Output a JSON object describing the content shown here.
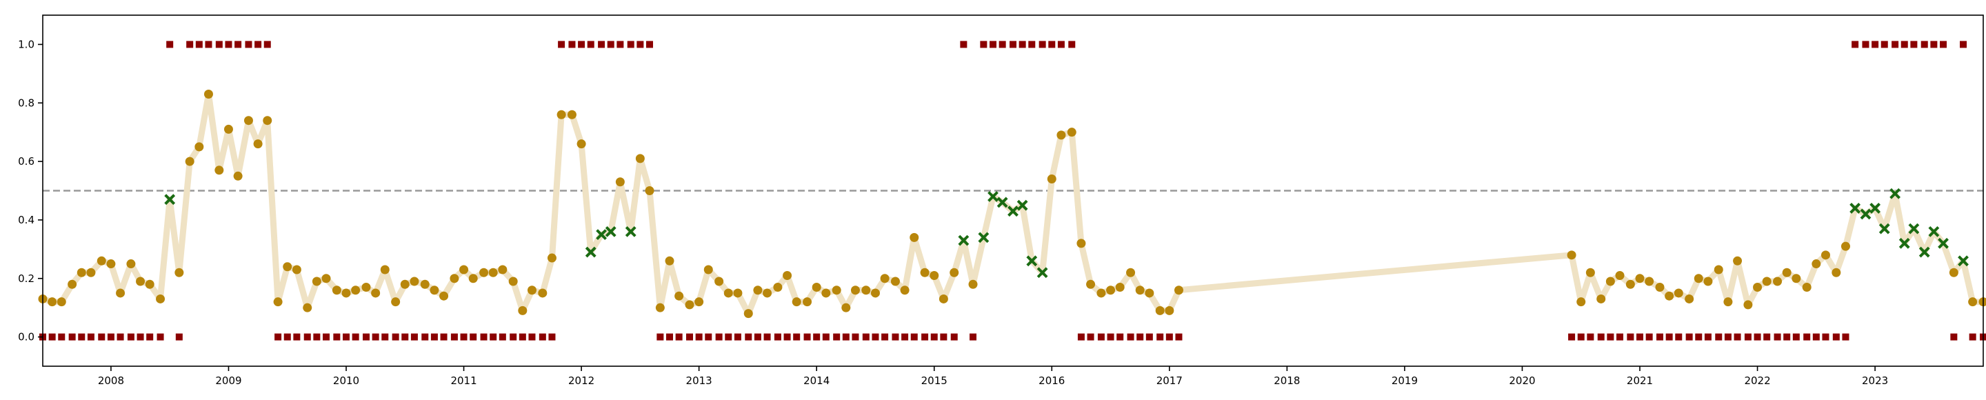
{
  "chart_data": {
    "type": "scatter",
    "title": "",
    "xlabel": "",
    "ylabel": "",
    "xlim": [
      2007.42,
      2023.92
    ],
    "ylim": [
      -0.1,
      1.1
    ],
    "x_ticks": [
      2008,
      2009,
      2010,
      2011,
      2012,
      2013,
      2014,
      2015,
      2016,
      2017,
      2018,
      2019,
      2020,
      2021,
      2022,
      2023
    ],
    "x_tick_labels": [
      "2008",
      "2009",
      "2010",
      "2011",
      "2012",
      "2013",
      "2014",
      "2015",
      "2016",
      "2017",
      "2018",
      "2019",
      "2020",
      "2021",
      "2022",
      "2023"
    ],
    "y_ticks": [
      0.0,
      0.2,
      0.4,
      0.6,
      0.8,
      1.0
    ],
    "y_tick_labels": [
      "0.0",
      "0.2",
      "0.4",
      "0.6",
      "0.8",
      "1.0"
    ],
    "grid": false,
    "reference_line": {
      "y": 0.5,
      "style": "dashed",
      "color": "#999999"
    },
    "colors": {
      "line": "#efe2c4",
      "normal_point": "#b8860b",
      "flagged_point": "#1a6b12",
      "indicator": "#8b0000",
      "axes": "#000000"
    },
    "series": [
      {
        "kind": "score-line",
        "x": [
          2007.42,
          2007.5,
          2007.58,
          2007.67,
          2007.75,
          2007.83,
          2007.92,
          2008.0,
          2008.08,
          2008.17,
          2008.25,
          2008.33,
          2008.42,
          2008.5,
          2008.58,
          2008.67,
          2008.75,
          2008.83,
          2008.92,
          2009.0,
          2009.08,
          2009.17,
          2009.25,
          2009.33,
          2009.42,
          2009.5,
          2009.58,
          2009.67,
          2009.75,
          2009.83,
          2009.92,
          2010.0,
          2010.08,
          2010.17,
          2010.25,
          2010.33,
          2010.42,
          2010.5,
          2010.58,
          2010.67,
          2010.75,
          2010.83,
          2010.92,
          2011.0,
          2011.08,
          2011.17,
          2011.25,
          2011.33,
          2011.42,
          2011.5,
          2011.58,
          2011.67,
          2011.75,
          2011.83,
          2011.92,
          2012.0,
          2012.08,
          2012.17,
          2012.25,
          2012.33,
          2012.42,
          2012.5,
          2012.58,
          2012.67,
          2012.75,
          2012.83,
          2012.92,
          2013.0,
          2013.08,
          2013.17,
          2013.25,
          2013.33,
          2013.42,
          2013.5,
          2013.58,
          2013.67,
          2013.75,
          2013.83,
          2013.92,
          2014.0,
          2014.08,
          2014.17,
          2014.25,
          2014.33,
          2014.42,
          2014.5,
          2014.58,
          2014.67,
          2014.75,
          2014.83,
          2014.92,
          2015.0,
          2015.08,
          2015.17,
          2015.25,
          2015.33,
          2015.42,
          2015.5,
          2015.58,
          2015.67,
          2015.75,
          2015.83,
          2015.92,
          2016.0,
          2016.08,
          2016.17,
          2016.25,
          2016.33,
          2016.42,
          2016.5,
          2016.58,
          2016.67,
          2016.75,
          2016.83,
          2016.92,
          2017.0,
          2017.08,
          2020.42,
          2020.5,
          2020.58,
          2020.67,
          2020.75,
          2020.83,
          2020.92,
          2021.0,
          2021.08,
          2021.17,
          2021.25,
          2021.33,
          2021.42,
          2021.5,
          2021.58,
          2021.67,
          2021.75,
          2021.83,
          2021.92,
          2022.0,
          2022.08,
          2022.17,
          2022.25,
          2022.33,
          2022.42,
          2022.5,
          2022.58,
          2022.67,
          2022.75,
          2022.83,
          2022.92,
          2023.0,
          2023.08,
          2023.17,
          2023.25,
          2023.33,
          2023.42,
          2023.5,
          2023.58,
          2023.67,
          2023.75,
          2023.83,
          2023.92
        ],
        "y": [
          0.13,
          0.12,
          0.12,
          0.18,
          0.22,
          0.22,
          0.26,
          0.25,
          0.15,
          0.25,
          0.19,
          0.18,
          0.13,
          0.47,
          0.22,
          0.6,
          0.65,
          0.83,
          0.57,
          0.71,
          0.55,
          0.74,
          0.66,
          0.74,
          0.12,
          0.24,
          0.23,
          0.1,
          0.19,
          0.2,
          0.16,
          0.15,
          0.16,
          0.17,
          0.15,
          0.23,
          0.12,
          0.18,
          0.19,
          0.18,
          0.16,
          0.14,
          0.2,
          0.23,
          0.2,
          0.22,
          0.22,
          0.23,
          0.19,
          0.09,
          0.16,
          0.15,
          0.27,
          0.76,
          0.76,
          0.66,
          0.29,
          0.35,
          0.36,
          0.53,
          0.36,
          0.61,
          0.5,
          0.1,
          0.26,
          0.14,
          0.11,
          0.12,
          0.23,
          0.19,
          0.15,
          0.15,
          0.08,
          0.16,
          0.15,
          0.17,
          0.21,
          0.12,
          0.12,
          0.17,
          0.15,
          0.16,
          0.1,
          0.16,
          0.16,
          0.15,
          0.2,
          0.19,
          0.16,
          0.34,
          0.22,
          0.21,
          0.13,
          0.22,
          0.33,
          0.18,
          0.34,
          0.48,
          0.46,
          0.43,
          0.45,
          0.26,
          0.22,
          0.54,
          0.69,
          0.7,
          0.32,
          0.18,
          0.15,
          0.16,
          0.17,
          0.22,
          0.16,
          0.15,
          0.09,
          0.09,
          0.16,
          0.28,
          0.12,
          0.22,
          0.13,
          0.19,
          0.21,
          0.18,
          0.2,
          0.19,
          0.17,
          0.14,
          0.15,
          0.13,
          0.2,
          0.19,
          0.23,
          0.12,
          0.26,
          0.11,
          0.17,
          0.19,
          0.19,
          0.22,
          0.2,
          0.17,
          0.25,
          0.28,
          0.22,
          0.31,
          0.44,
          0.42,
          0.44,
          0.37,
          0.49,
          0.32,
          0.37,
          0.29,
          0.36,
          0.32,
          0.22,
          0.26,
          0.12,
          0.12
        ],
        "flagged": [
          false,
          false,
          false,
          false,
          false,
          false,
          false,
          false,
          false,
          false,
          false,
          false,
          false,
          true,
          false,
          false,
          false,
          false,
          false,
          false,
          false,
          false,
          false,
          false,
          false,
          false,
          false,
          false,
          false,
          false,
          false,
          false,
          false,
          false,
          false,
          false,
          false,
          false,
          false,
          false,
          false,
          false,
          false,
          false,
          false,
          false,
          false,
          false,
          false,
          false,
          false,
          false,
          false,
          false,
          false,
          false,
          true,
          true,
          true,
          false,
          true,
          false,
          false,
          false,
          false,
          false,
          false,
          false,
          false,
          false,
          false,
          false,
          false,
          false,
          false,
          false,
          false,
          false,
          false,
          false,
          false,
          false,
          false,
          false,
          false,
          false,
          false,
          false,
          false,
          false,
          false,
          false,
          false,
          false,
          true,
          false,
          true,
          true,
          true,
          true,
          true,
          true,
          true,
          false,
          false,
          false,
          false,
          false,
          false,
          false,
          false,
          false,
          false,
          false,
          false,
          false,
          false,
          false,
          false,
          false,
          false,
          false,
          false,
          false,
          false,
          false,
          false,
          false,
          false,
          false,
          false,
          false,
          false,
          false,
          false,
          false,
          false,
          false,
          false,
          false,
          false,
          false,
          false,
          false,
          false,
          false,
          true,
          true,
          true,
          true,
          true,
          true,
          true,
          true,
          true,
          true,
          false,
          true,
          false,
          false
        ]
      },
      {
        "kind": "binary-indicator",
        "x": [
          2007.42,
          2007.5,
          2007.58,
          2007.67,
          2007.75,
          2007.83,
          2007.92,
          2008.0,
          2008.08,
          2008.17,
          2008.25,
          2008.33,
          2008.42,
          2008.5,
          2008.58,
          2008.67,
          2008.75,
          2008.83,
          2008.92,
          2009.0,
          2009.08,
          2009.17,
          2009.25,
          2009.33,
          2009.42,
          2009.5,
          2009.58,
          2009.67,
          2009.75,
          2009.83,
          2009.92,
          2010.0,
          2010.08,
          2010.17,
          2010.25,
          2010.33,
          2010.42,
          2010.5,
          2010.58,
          2010.67,
          2010.75,
          2010.83,
          2010.92,
          2011.0,
          2011.08,
          2011.17,
          2011.25,
          2011.33,
          2011.42,
          2011.5,
          2011.58,
          2011.67,
          2011.75,
          2011.83,
          2011.92,
          2012.0,
          2012.08,
          2012.17,
          2012.25,
          2012.33,
          2012.42,
          2012.5,
          2012.58,
          2012.67,
          2012.75,
          2012.83,
          2012.92,
          2013.0,
          2013.08,
          2013.17,
          2013.25,
          2013.33,
          2013.42,
          2013.5,
          2013.58,
          2013.67,
          2013.75,
          2013.83,
          2013.92,
          2014.0,
          2014.08,
          2014.17,
          2014.25,
          2014.33,
          2014.42,
          2014.5,
          2014.58,
          2014.67,
          2014.75,
          2014.83,
          2014.92,
          2015.0,
          2015.08,
          2015.17,
          2015.25,
          2015.33,
          2015.42,
          2015.5,
          2015.58,
          2015.67,
          2015.75,
          2015.83,
          2015.92,
          2016.0,
          2016.08,
          2016.17,
          2016.25,
          2016.33,
          2016.42,
          2016.5,
          2016.58,
          2016.67,
          2016.75,
          2016.83,
          2016.92,
          2017.0,
          2017.08,
          2020.42,
          2020.5,
          2020.58,
          2020.67,
          2020.75,
          2020.83,
          2020.92,
          2021.0,
          2021.08,
          2021.17,
          2021.25,
          2021.33,
          2021.42,
          2021.5,
          2021.58,
          2021.67,
          2021.75,
          2021.83,
          2021.92,
          2022.0,
          2022.08,
          2022.17,
          2022.25,
          2022.33,
          2022.42,
          2022.5,
          2022.58,
          2022.67,
          2022.75,
          2022.83,
          2022.92,
          2023.0,
          2023.08,
          2023.17,
          2023.25,
          2023.33,
          2023.42,
          2023.5,
          2023.58,
          2023.67,
          2023.75,
          2023.83,
          2023.92
        ],
        "y": [
          0,
          0,
          0,
          0,
          0,
          0,
          0,
          0,
          0,
          0,
          0,
          0,
          0,
          1,
          0,
          1,
          1,
          1,
          1,
          1,
          1,
          1,
          1,
          1,
          0,
          0,
          0,
          0,
          0,
          0,
          0,
          0,
          0,
          0,
          0,
          0,
          0,
          0,
          0,
          0,
          0,
          0,
          0,
          0,
          0,
          0,
          0,
          0,
          0,
          0,
          0,
          0,
          0,
          1,
          1,
          1,
          1,
          1,
          1,
          1,
          1,
          1,
          1,
          0,
          0,
          0,
          0,
          0,
          0,
          0,
          0,
          0,
          0,
          0,
          0,
          0,
          0,
          0,
          0,
          0,
          0,
          0,
          0,
          0,
          0,
          0,
          0,
          0,
          0,
          0,
          0,
          0,
          0,
          0,
          1,
          0,
          1,
          1,
          1,
          1,
          1,
          1,
          1,
          1,
          1,
          1,
          0,
          0,
          0,
          0,
          0,
          0,
          0,
          0,
          0,
          0,
          0,
          0,
          0,
          0,
          0,
          0,
          0,
          0,
          0,
          0,
          0,
          0,
          0,
          0,
          0,
          0,
          0,
          0,
          0,
          0,
          0,
          0,
          0,
          0,
          0,
          0,
          0,
          0,
          0,
          0,
          1,
          1,
          1,
          1,
          1,
          1,
          1,
          1,
          1,
          1,
          0,
          1,
          0,
          0
        ]
      }
    ]
  }
}
